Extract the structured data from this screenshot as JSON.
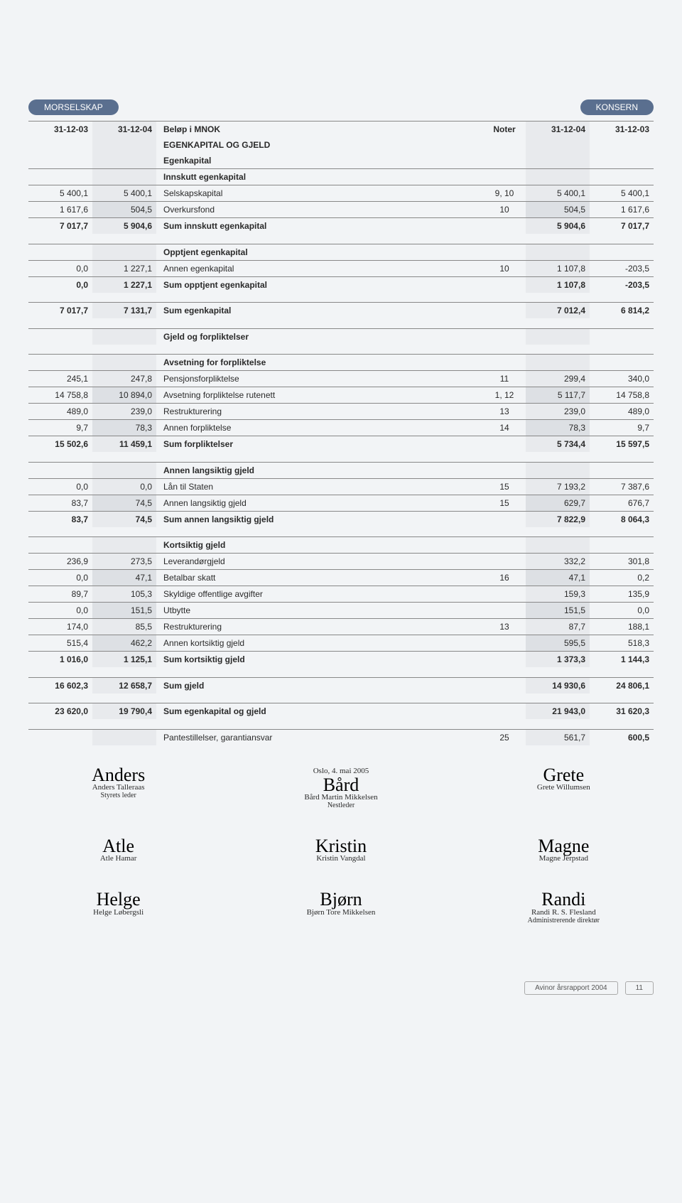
{
  "badges": {
    "left": "MORSELSKAP",
    "right": "KONSERN"
  },
  "header": {
    "c1": "31-12-03",
    "c2": "31-12-04",
    "c3": "Beløp i MNOK",
    "c4": "Noter",
    "c5": "31-12-04",
    "c6": "31-12-03"
  },
  "sections": [
    {
      "heading": "EGENKAPITAL OG GJELD",
      "sub": "Egenkapital",
      "sub2": "Innskutt egenkapital",
      "rows": [
        {
          "c1": "5 400,1",
          "c2": "5 400,1",
          "c3": "Selskapskapital",
          "c4": "9, 10",
          "c5": "5 400,1",
          "c6": "5 400,1"
        },
        {
          "c1": "1 617,6",
          "c2": "504,5",
          "c3": "Overkursfond",
          "c4": "10",
          "c5": "504,5",
          "c6": "1 617,6"
        },
        {
          "c1": "7 017,7",
          "c2": "5 904,6",
          "c3": "Sum innskutt egenkapital",
          "c4": "",
          "c5": "5 904,6",
          "c6": "7 017,7",
          "bold": true
        }
      ]
    },
    {
      "sub2": "Opptjent egenkapital",
      "rows": [
        {
          "c1": "0,0",
          "c2": "1 227,1",
          "c3": "Annen egenkapital",
          "c4": "10",
          "c5": "1 107,8",
          "c6": "-203,5"
        },
        {
          "c1": "0,0",
          "c2": "1 227,1",
          "c3": "Sum opptjent egenkapital",
          "c4": "",
          "c5": "1 107,8",
          "c6": "-203,5",
          "bold": true
        }
      ]
    },
    {
      "rows": [
        {
          "c1": "7 017,7",
          "c2": "7 131,7",
          "c3": "Sum egenkapital",
          "c4": "",
          "c5": "7 012,4",
          "c6": "6 814,2",
          "bold": true
        }
      ]
    },
    {
      "sub2": "Gjeld og forpliktelser"
    },
    {
      "sub2": "Avsetning for forpliktelse",
      "rows": [
        {
          "c1": "245,1",
          "c2": "247,8",
          "c3": "Pensjonsforpliktelse",
          "c4": "11",
          "c5": "299,4",
          "c6": "340,0"
        },
        {
          "c1": "14 758,8",
          "c2": "10 894,0",
          "c3": "Avsetning forpliktelse rutenett",
          "c4": "1, 12",
          "c5": "5 117,7",
          "c6": "14 758,8"
        },
        {
          "c1": "489,0",
          "c2": "239,0",
          "c3": "Restrukturering",
          "c4": "13",
          "c5": "239,0",
          "c6": "489,0"
        },
        {
          "c1": "9,7",
          "c2": "78,3",
          "c3": "Annen forpliktelse",
          "c4": "14",
          "c5": "78,3",
          "c6": "9,7"
        },
        {
          "c1": "15 502,6",
          "c2": "11 459,1",
          "c3": "Sum forpliktelser",
          "c4": "",
          "c5": "5 734,4",
          "c6": "15 597,5",
          "bold": true
        }
      ]
    },
    {
      "sub2": "Annen langsiktig gjeld",
      "rows": [
        {
          "c1": "0,0",
          "c2": "0,0",
          "c3": "Lån til Staten",
          "c4": "15",
          "c5": "7 193,2",
          "c6": "7 387,6"
        },
        {
          "c1": "83,7",
          "c2": "74,5",
          "c3": "Annen langsiktig gjeld",
          "c4": "15",
          "c5": "629,7",
          "c6": "676,7"
        },
        {
          "c1": "83,7",
          "c2": "74,5",
          "c3": "Sum annen langsiktig gjeld",
          "c4": "",
          "c5": "7 822,9",
          "c6": "8 064,3",
          "bold": true
        }
      ]
    },
    {
      "sub2": "Kortsiktig gjeld",
      "rows": [
        {
          "c1": "236,9",
          "c2": "273,5",
          "c3": "Leverandørgjeld",
          "c4": "",
          "c5": "332,2",
          "c6": "301,8"
        },
        {
          "c1": "0,0",
          "c2": "47,1",
          "c3": "Betalbar skatt",
          "c4": "16",
          "c5": "47,1",
          "c6": "0,2"
        },
        {
          "c1": "89,7",
          "c2": "105,3",
          "c3": "Skyldige offentlige avgifter",
          "c4": "",
          "c5": "159,3",
          "c6": "135,9"
        },
        {
          "c1": "0,0",
          "c2": "151,5",
          "c3": "Utbytte",
          "c4": "",
          "c5": "151,5",
          "c6": "0,0"
        },
        {
          "c1": "174,0",
          "c2": "85,5",
          "c3": "Restrukturering",
          "c4": "13",
          "c5": "87,7",
          "c6": "188,1"
        },
        {
          "c1": "515,4",
          "c2": "462,2",
          "c3": "Annen kortsiktig gjeld",
          "c4": "",
          "c5": "595,5",
          "c6": "518,3"
        },
        {
          "c1": "1 016,0",
          "c2": "1 125,1",
          "c3": "Sum kortsiktig gjeld",
          "c4": "",
          "c5": "1 373,3",
          "c6": "1 144,3",
          "bold": true
        }
      ]
    },
    {
      "rows": [
        {
          "c1": "16 602,3",
          "c2": "12 658,7",
          "c3": "Sum gjeld",
          "c4": "",
          "c5": "14 930,6",
          "c6": "24 806,1",
          "bold": true
        }
      ]
    },
    {
      "rows": [
        {
          "c1": "23 620,0",
          "c2": "19 790,4",
          "c3": "Sum egenkapital og gjeld",
          "c4": "",
          "c5": "21 943,0",
          "c6": "31 620,3",
          "bold": true
        }
      ]
    },
    {
      "rows": [
        {
          "c1": "",
          "c2": "",
          "c3": "Pantestillelser, garantiansvar",
          "c4": "25",
          "c5": "561,7",
          "c6": "600,5",
          "c6bold": true
        }
      ]
    }
  ],
  "date": "Oslo, 4. mai 2005",
  "signatures": [
    {
      "name": "Anders Talleraas",
      "title": "Styrets leder"
    },
    {
      "name": "Bård Martin Mikkelsen",
      "title": "Nestleder"
    },
    {
      "name": "Grete Willumsen",
      "title": ""
    },
    {
      "name": "Atle Hamar",
      "title": ""
    },
    {
      "name": "Kristin Vangdal",
      "title": ""
    },
    {
      "name": "Magne Jerpstad",
      "title": ""
    },
    {
      "name": "Helge Løbergsli",
      "title": ""
    },
    {
      "name": "Bjørn Tore Mikkelsen",
      "title": ""
    },
    {
      "name": "Randi R. S. Flesland",
      "title": "Administrerende direktør"
    }
  ],
  "footer": {
    "title": "Avinor årsrapport 2004",
    "page": "11"
  },
  "colors": {
    "badge": "#5a6f8f",
    "page_bg": "#f2f4f6",
    "shade": "#e8eaed",
    "border": "#888"
  }
}
